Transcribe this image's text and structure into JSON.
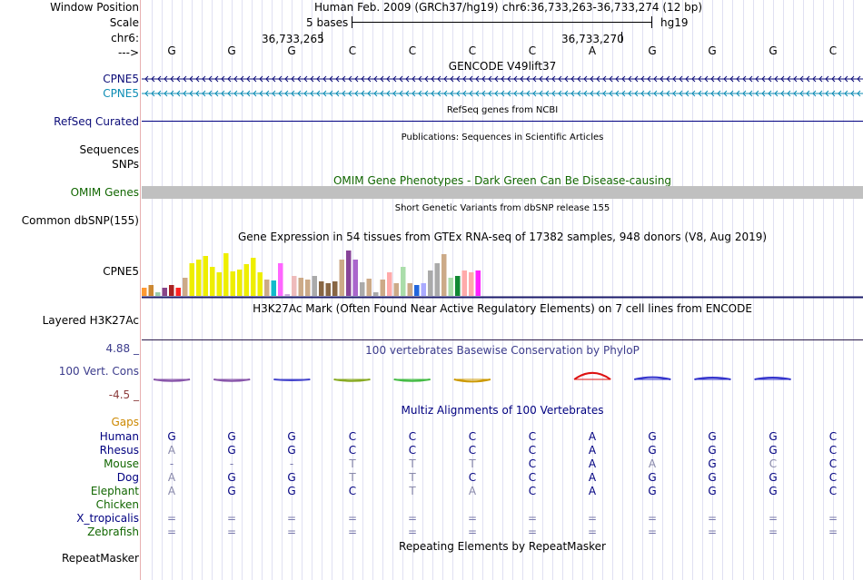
{
  "labels": {
    "window_position": "Window Position",
    "scale": "Scale",
    "chr": "chr6:",
    "strand": "--->",
    "cpne5_a": "CPNE5",
    "cpne5_b": "CPNE5",
    "refseq": "RefSeq Curated",
    "sequences": "Sequences",
    "snps": "SNPs",
    "omim_genes": "OMIM Genes",
    "common_dbsnp": "Common dbSNP(155)",
    "cpne5_expr": "CPNE5",
    "layered_h3k27ac": "Layered H3K27Ac",
    "phylop_max": "4.88 _",
    "vert_cons": "100 Vert. Cons",
    "phylop_min": "-4.5 _",
    "gaps": "Gaps",
    "repeatmasker": "RepeatMasker"
  },
  "ruler": {
    "assembly": "Human Feb. 2009 (GRCh37/hg19)",
    "position": "chr6:36,733,263-36,733,274 (12 bp)",
    "scale_text": "5 bases",
    "scale_db": "hg19",
    "tick1": "36,733,265",
    "tick2": "36,733,270"
  },
  "bases": [
    "G",
    "G",
    "G",
    "C",
    "C",
    "C",
    "C",
    "A",
    "G",
    "G",
    "G",
    "C"
  ],
  "track_titles": {
    "gencode": "GENCODE V49lift37",
    "refseq": "RefSeq genes from NCBI",
    "publications": "Publications: Sequences in Scientific Articles",
    "omim": "OMIM Gene Phenotypes - Dark Green Can Be Disease-causing",
    "dbsnp": "Short Genetic Variants from dbSNP release 155",
    "gtex": "Gene Expression in 54 tissues from GTEx RNA-seq of 17382 samples, 948 donors (V8, Aug 2019)",
    "h3k27ac": "H3K27Ac Mark (Often Found Near Active Regulatory Elements) on 7 cell lines from ENCODE",
    "phylop": "100 vertebrates Basewise Conservation by PhyloP",
    "multiz": "Multiz Alignments of 100 Vertebrates",
    "repeatmasker": "Repeating Elements by RepeatMasker"
  },
  "gtex_bars": [
    {
      "value": 9,
      "color": "#ff9933"
    },
    {
      "value": 12,
      "color": "#cc8833"
    },
    {
      "value": 4,
      "color": "#99ccaa"
    },
    {
      "value": 9,
      "color": "#884488"
    },
    {
      "value": 12,
      "color": "#aa2222"
    },
    {
      "value": 9,
      "color": "#ff2222"
    },
    {
      "value": 20,
      "color": "#ccaa88"
    },
    {
      "value": 36,
      "color": "#eeee00"
    },
    {
      "value": 40,
      "color": "#eeee00"
    },
    {
      "value": 44,
      "color": "#eeee00"
    },
    {
      "value": 32,
      "color": "#eeee00"
    },
    {
      "value": 26,
      "color": "#eeee00"
    },
    {
      "value": 47,
      "color": "#eeee00"
    },
    {
      "value": 27,
      "color": "#eeee00"
    },
    {
      "value": 29,
      "color": "#eeee00"
    },
    {
      "value": 35,
      "color": "#eeee00"
    },
    {
      "value": 42,
      "color": "#eeee00"
    },
    {
      "value": 26,
      "color": "#eeee00"
    },
    {
      "value": 18,
      "color": "#ccaa88"
    },
    {
      "value": 17,
      "color": "#11bbcc"
    },
    {
      "value": 36,
      "color": "#ff66ff"
    },
    {
      "value": 2,
      "color": "#ccaadd"
    },
    {
      "value": 22,
      "color": "#eebbbb"
    },
    {
      "value": 20,
      "color": "#ccaa88"
    },
    {
      "value": 18,
      "color": "#ccaa88"
    },
    {
      "value": 22,
      "color": "#aaaaaa"
    },
    {
      "value": 16,
      "color": "#886644"
    },
    {
      "value": 14,
      "color": "#886644"
    },
    {
      "value": 16,
      "color": "#886644"
    },
    {
      "value": 40,
      "color": "#ccaa88"
    },
    {
      "value": 50,
      "color": "#884499"
    },
    {
      "value": 40,
      "color": "#aa66cc"
    },
    {
      "value": 15,
      "color": "#aaaaaa"
    },
    {
      "value": 19,
      "color": "#ccaa88"
    },
    {
      "value": 4,
      "color": "#aaaaaa"
    },
    {
      "value": 18,
      "color": "#ccaa88"
    },
    {
      "value": 26,
      "color": "#ffaaaa"
    },
    {
      "value": 14,
      "color": "#ccaa88"
    },
    {
      "value": 32,
      "color": "#aaddaa"
    },
    {
      "value": 14,
      "color": "#ccaa88"
    },
    {
      "value": 12,
      "color": "#2266dd"
    },
    {
      "value": 14,
      "color": "#aaaaff"
    },
    {
      "value": 28,
      "color": "#aaaaaa"
    },
    {
      "value": 36,
      "color": "#aaaaaa"
    },
    {
      "value": 46,
      "color": "#ccaa88"
    },
    {
      "value": 20,
      "color": "#aaddaa"
    },
    {
      "value": 22,
      "color": "#118833"
    },
    {
      "value": 28,
      "color": "#ffaaaa"
    },
    {
      "value": 26,
      "color": "#ffaaaa"
    },
    {
      "value": 28,
      "color": "#ff22ff"
    }
  ],
  "phylop": {
    "scores": [
      -0.3,
      -0.3,
      0.0,
      -0.3,
      -0.3,
      -0.4,
      0.0,
      0.6,
      0.2,
      0.1,
      0.1,
      0.0
    ],
    "colors": [
      "#8855aa",
      "#8855aa",
      "#4444cc",
      "#88aa22",
      "#44bb44",
      "#cc9900",
      "#ffffff",
      "#dd1111",
      "#3333cc",
      "#3333cc",
      "#3333cc",
      "#ffffff"
    ]
  },
  "multiz": {
    "species": [
      {
        "name": "Human",
        "color": "#000080",
        "bases": [
          "G",
          "G",
          "G",
          "C",
          "C",
          "C",
          "C",
          "A",
          "G",
          "G",
          "G",
          "C"
        ]
      },
      {
        "name": "Rhesus",
        "color": "#000080",
        "bases": [
          "A",
          "G",
          "G",
          "C",
          "C",
          "C",
          "C",
          "A",
          "G",
          "G",
          "G",
          "C"
        ]
      },
      {
        "name": "Mouse",
        "color": "#116600",
        "bases": [
          "-",
          "-",
          "-",
          "T",
          "T",
          "T",
          "C",
          "A",
          "A",
          "G",
          "C",
          "C"
        ]
      },
      {
        "name": "Dog",
        "color": "#000080",
        "bases": [
          "A",
          "G",
          "G",
          "T",
          "T",
          "C",
          "C",
          "A",
          "G",
          "G",
          "G",
          "C"
        ]
      },
      {
        "name": "Elephant",
        "color": "#116600",
        "bases": [
          "A",
          "G",
          "G",
          "C",
          "T",
          "A",
          "C",
          "A",
          "G",
          "G",
          "G",
          "C"
        ]
      },
      {
        "name": "Chicken",
        "color": "#116600",
        "bases": [
          "",
          "",
          "",
          "",
          "",
          "",
          "",
          "",
          "",
          "",
          "",
          ""
        ]
      },
      {
        "name": "X_tropicalis",
        "color": "#000080",
        "bases": [
          "=",
          "=",
          "=",
          "=",
          "=",
          "=",
          "=",
          "=",
          "=",
          "=",
          "=",
          "="
        ]
      },
      {
        "name": "Zebrafish",
        "color": "#116600",
        "bases": [
          "=",
          "=",
          "=",
          "=",
          "=",
          "=",
          "=",
          "=",
          "=",
          "=",
          "=",
          "="
        ]
      }
    ]
  }
}
